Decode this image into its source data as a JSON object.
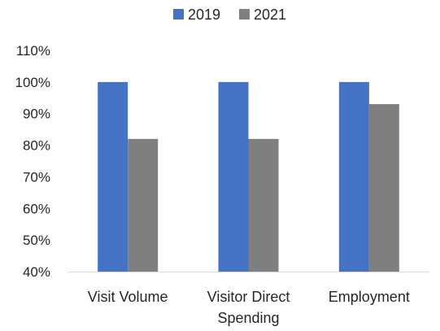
{
  "chart_data": {
    "type": "bar",
    "categories": [
      [
        "Visit Volume"
      ],
      [
        "Visitor Direct",
        "Spending"
      ],
      [
        "Employment"
      ]
    ],
    "series": [
      {
        "name": "2019",
        "values": [
          100,
          100,
          100
        ],
        "color": "#4472C4"
      },
      {
        "name": "2021",
        "values": [
          82,
          82,
          93
        ],
        "color": "#7F7F7F"
      }
    ],
    "ylim": [
      40,
      110
    ],
    "yticks": [
      "40%",
      "50%",
      "60%",
      "70%",
      "80%",
      "90%",
      "100%",
      "110%"
    ],
    "ytick_values": [
      40,
      50,
      60,
      70,
      80,
      90,
      100,
      110
    ],
    "grid": false,
    "legend_position": "top-center",
    "axis_color": "#D9D9D9"
  }
}
